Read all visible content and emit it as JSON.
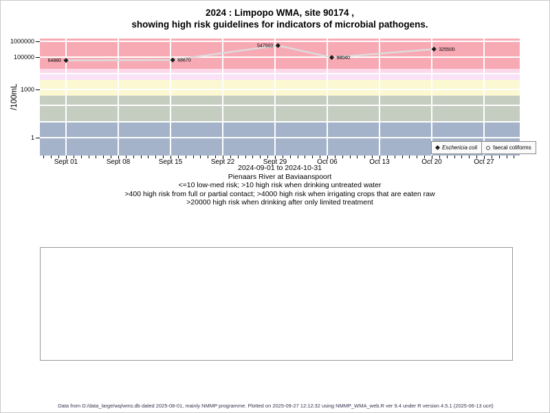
{
  "title": {
    "line1": "2024 : Limpopo WMA, site 90174 ,",
    "line2": "showing high risk guidelines for indicators of microbial pathogens."
  },
  "captions": {
    "date_range": "2024-09-01 to 2024-10-31",
    "site_name": "Pienaars River at Baviaanspoort",
    "guideline1": "<=10 low-med risk; >10 high risk when drinking untreated water",
    "guideline2": ">400 high risk from full or partial contact; >4000 high risk when irrigating crops that are eaten raw",
    "guideline3": ">20000 high risk when drinking after only limited treatment"
  },
  "footer": "Data from D:/data_large/wq/wms.db dated 2025-08-01, mainly NMMP programme. Plotted on 2025-09-27 12:12:32 using NMMP_WMA_web.R ver 9.4 under R version 4.5.1 (2025-06-13 ucrt)",
  "chart_data": {
    "type": "scatter",
    "y_scale": "log",
    "ylabel": "/100mL",
    "x_tick_labels": [
      "Sept 01",
      "Sept 08",
      "Sept 15",
      "Sept 22",
      "Sept 29",
      "Oct 06",
      "Oct 13",
      "Oct 20",
      "Oct 27"
    ],
    "x_minor_ticks": "daily",
    "y_tick_values": [
      1,
      1000,
      100000,
      1000000
    ],
    "y_tick_labels": [
      "1",
      "1000",
      "100000",
      "1000000"
    ],
    "y_range_log10": [
      -1.11,
      6.17
    ],
    "x_range_days": [
      -3.5,
      60.8
    ],
    "grid": "white major gridlines on",
    "legend_position": "bottom-right inside plot",
    "series": [
      {
        "name": "Eschericia coli",
        "symbol": "filled-diamond",
        "point_color": "#1c1c1c",
        "line_color": "#dcdcdc",
        "points": [
          {
            "day": 0,
            "date": "Sept 01",
            "value": 64880,
            "label": "64880",
            "label_side": "left"
          },
          {
            "day": 14.3,
            "date": "Sept 15",
            "value": 68670,
            "label": "68670",
            "label_side": "right"
          },
          {
            "day": 28.4,
            "date": "Sept 29",
            "value": 547500,
            "label": "547500",
            "label_side": "left"
          },
          {
            "day": 35.6,
            "date": "Oct 06",
            "value": 98040,
            "label": "98040",
            "label_side": "right"
          },
          {
            "day": 49.3,
            "date": "Oct 20",
            "value": 325500,
            "label": "325500",
            "label_side": "right"
          }
        ]
      },
      {
        "name": "faecal coliforms",
        "symbol": "open-circle",
        "point_color": "#1c1c1c",
        "points": []
      }
    ],
    "risk_bands": [
      {
        "label": ">20000",
        "from": 20000,
        "to": null,
        "color": "#f8aab4"
      },
      {
        "label": "10000-20000",
        "from": 10000,
        "to": 20000,
        "color": "#fbd9ea"
      },
      {
        "label": "4000-10000",
        "from": 4000,
        "to": 10000,
        "color": "#f9e1f8"
      },
      {
        "label": "400-4000",
        "from": 400,
        "to": 4000,
        "color": "#fbf8d2"
      },
      {
        "label": "10-400",
        "from": 10,
        "to": 400,
        "color": "#c4cdc0"
      },
      {
        "label": "<10",
        "from": null,
        "to": 10,
        "color": "#a4b3ca"
      }
    ]
  }
}
